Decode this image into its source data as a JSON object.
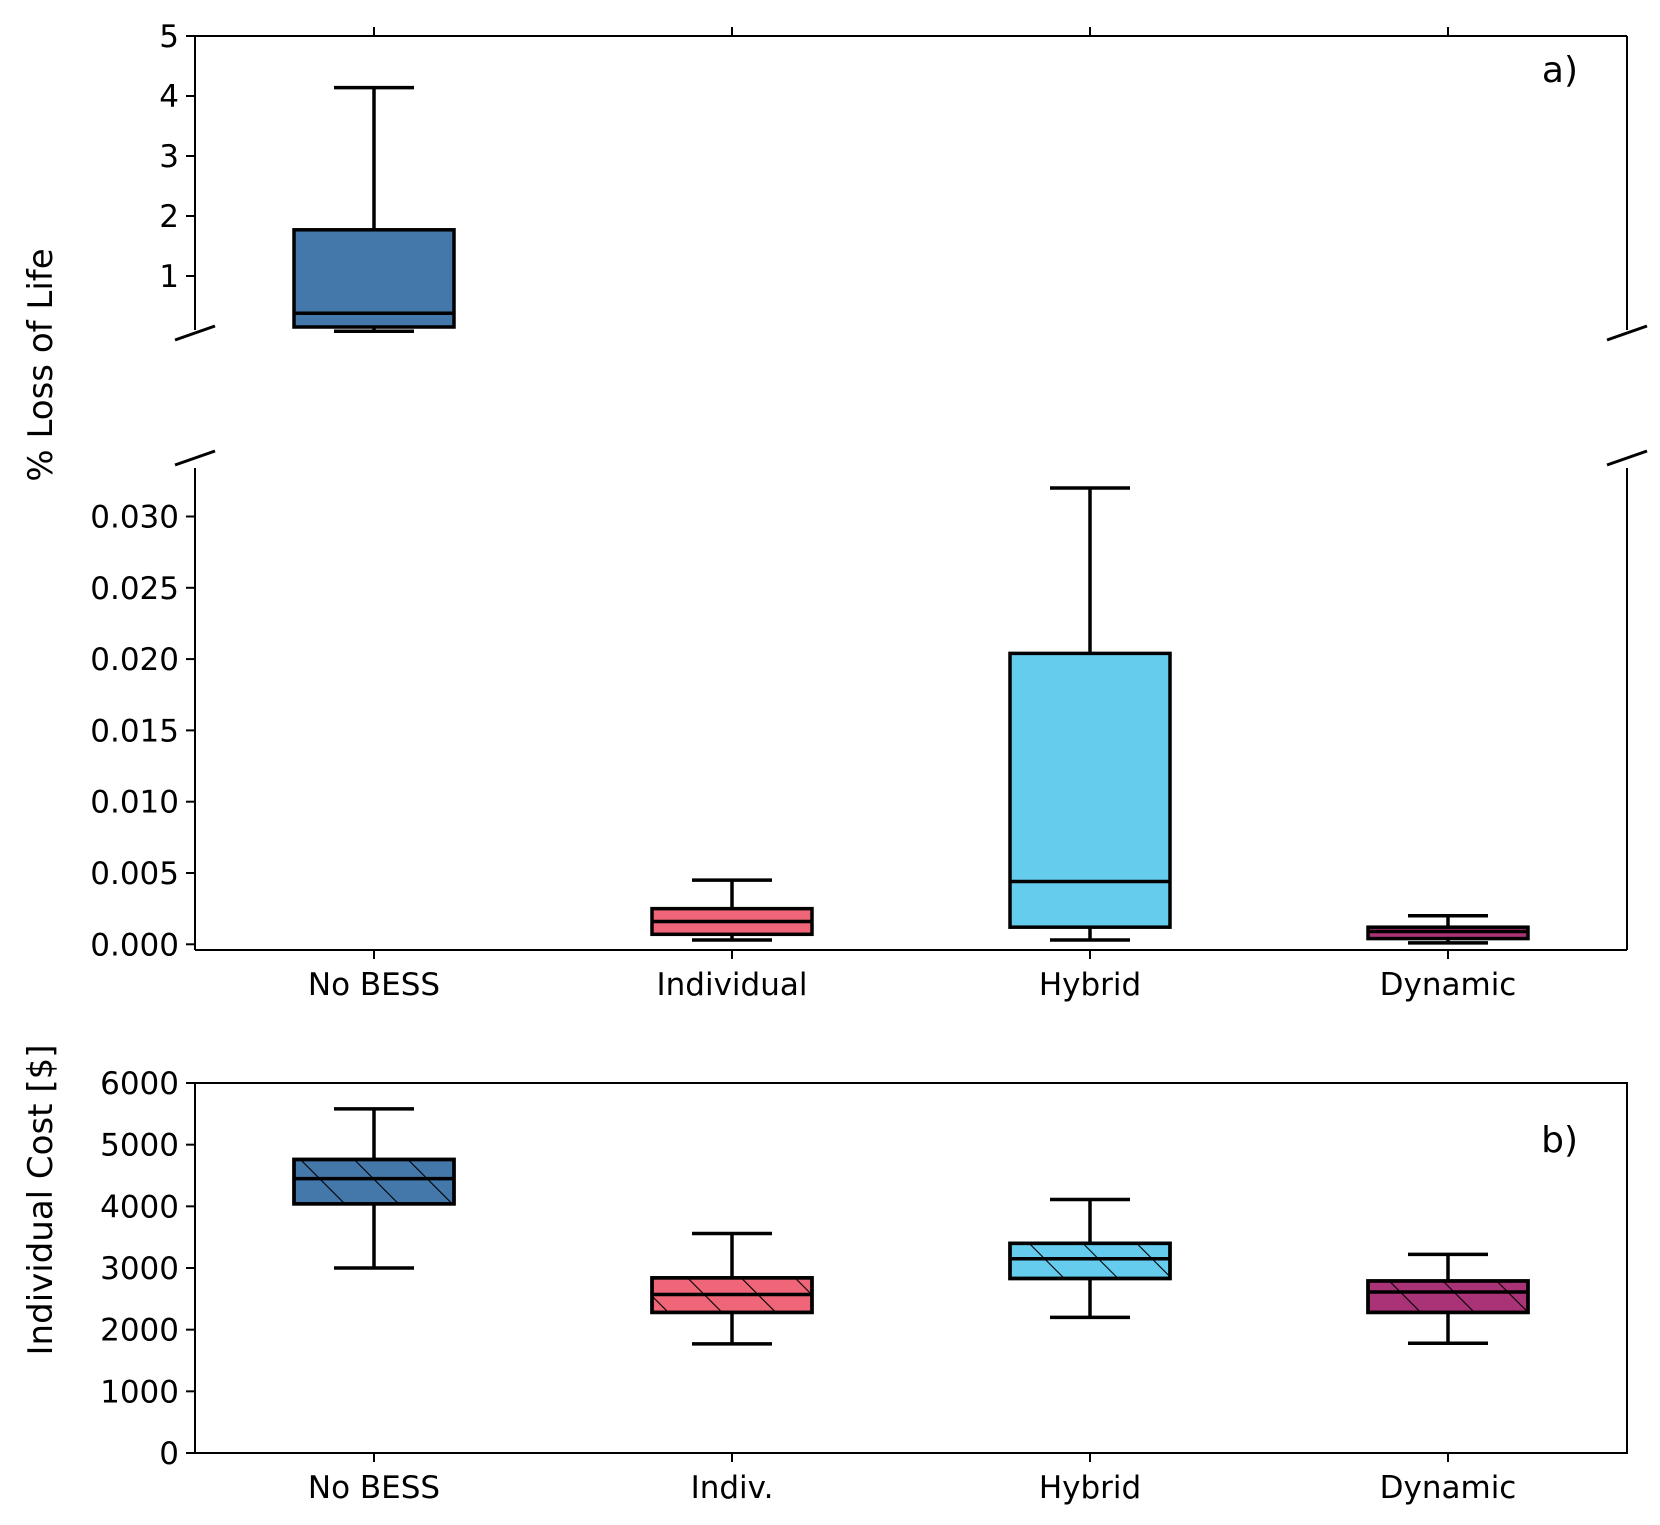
{
  "colors": {
    "no_bess": "#4477aa",
    "individual": "#ee6677",
    "hybrid": "#66ccee",
    "dynamic": "#aa3377"
  },
  "chart_data": [
    {
      "id": "a",
      "type": "box",
      "panel_label": "a)",
      "ylabel": "% Loss of Life",
      "broken_axis": true,
      "categories": [
        "No BESS",
        "Individual",
        "Hybrid",
        "Dynamic"
      ],
      "upper_axis": {
        "ylim": [
          0.1,
          5
        ],
        "ticks": [
          1,
          2,
          3,
          4,
          5
        ],
        "tick_labels": [
          "1",
          "2",
          "3",
          "4",
          "5"
        ]
      },
      "lower_axis": {
        "ylim": [
          -0.0004,
          0.0334
        ],
        "ticks": [
          0,
          0.005,
          0.01,
          0.015,
          0.02,
          0.025,
          0.03
        ],
        "tick_labels": [
          "0.000",
          "0.005",
          "0.010",
          "0.015",
          "0.020",
          "0.025",
          "0.030"
        ]
      },
      "boxes": [
        {
          "category": "No BESS",
          "segment": "upper",
          "whisker_low": 0.08,
          "q1": 0.15,
          "median": 0.38,
          "q3": 1.77,
          "whisker_high": 4.14,
          "color": "#4477aa"
        },
        {
          "category": "Individual",
          "segment": "lower",
          "whisker_low": 0.0003,
          "q1": 0.0007,
          "median": 0.0016,
          "q3": 0.0025,
          "whisker_high": 0.0045,
          "color": "#ee6677"
        },
        {
          "category": "Hybrid",
          "segment": "lower",
          "whisker_low": 0.0003,
          "q1": 0.0012,
          "median": 0.0044,
          "q3": 0.0204,
          "whisker_high": 0.032,
          "color": "#66ccee"
        },
        {
          "category": "Dynamic",
          "segment": "lower",
          "whisker_low": 0.0001,
          "q1": 0.0004,
          "median": 0.0009,
          "q3": 0.0012,
          "whisker_high": 0.002,
          "color": "#aa3377"
        }
      ]
    },
    {
      "id": "b",
      "type": "box",
      "panel_label": "b)",
      "ylabel": "Individual Cost [$]",
      "categories": [
        "No BESS",
        "Indiv.",
        "Hybrid",
        "Dynamic"
      ],
      "ylim": [
        0,
        6000
      ],
      "ticks": [
        0,
        1000,
        2000,
        3000,
        4000,
        5000,
        6000
      ],
      "tick_labels": [
        "0",
        "1000",
        "2000",
        "3000",
        "4000",
        "5000",
        "6000"
      ],
      "hatch": "diagonal",
      "boxes": [
        {
          "category": "No BESS",
          "whisker_low": 3000,
          "q1": 4040,
          "median": 4450,
          "q3": 4760,
          "whisker_high": 5580,
          "color": "#4477aa"
        },
        {
          "category": "Indiv.",
          "whisker_low": 1770,
          "q1": 2280,
          "median": 2570,
          "q3": 2840,
          "whisker_high": 3560,
          "color": "#ee6677"
        },
        {
          "category": "Hybrid",
          "whisker_low": 2200,
          "q1": 2830,
          "median": 3150,
          "q3": 3400,
          "whisker_high": 4110,
          "color": "#66ccee"
        },
        {
          "category": "Dynamic",
          "whisker_low": 1780,
          "q1": 2280,
          "median": 2610,
          "q3": 2790,
          "whisker_high": 3220,
          "color": "#aa3377"
        }
      ]
    }
  ]
}
